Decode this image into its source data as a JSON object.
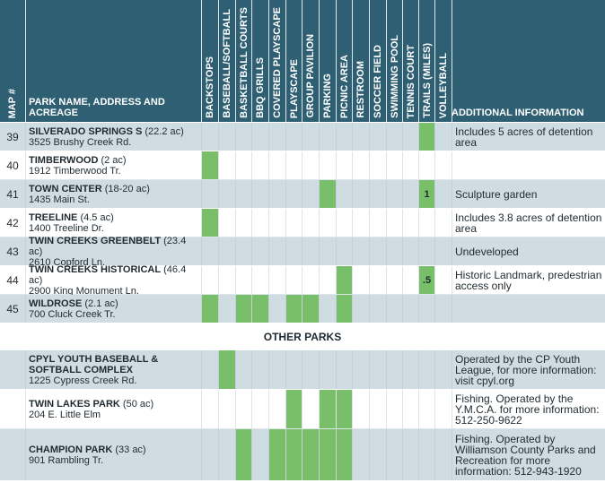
{
  "headers": {
    "map_no": "MAP #",
    "park_name": "PARK NAME, ADDRESS AND\nACREAGE",
    "amenities": [
      "BACKSTOPS",
      "BASEBALL/SOFTBALL",
      "BASKETBALL COURTS",
      "BBQ GRILLS",
      "COVERED PLAYSCAPE",
      "PLAYSCAPE",
      "GROUP PAVILION",
      "PARKING",
      "PICNIC AREA",
      "RESTROOM",
      "SOCCER FIELD",
      "SWIMMING POOL",
      "TENNIS COURT",
      "TRAILS (MILES)",
      "VOLLEYBALL"
    ],
    "additional": "ADDITIONAL INFORMATION"
  },
  "colors": {
    "header": "#2f5f73",
    "shaded_row": "#cfdde2",
    "amenity_fill": "#79bf6a"
  },
  "parks": [
    {
      "num": "39",
      "name": "SILVERADO SPRINGS S",
      "acreage": "(22.2 ac)",
      "address": "3525 Brushy Creek Rd.",
      "amenities": [
        13
      ],
      "amenity_labels": {},
      "info": "Includes 5 acres of detention area"
    },
    {
      "num": "40",
      "name": "TIMBERWOOD",
      "acreage": "(2 ac)",
      "address": "1912 Timberwood Tr.",
      "amenities": [
        0
      ],
      "amenity_labels": {},
      "info": ""
    },
    {
      "num": "41",
      "name": "TOWN CENTER",
      "acreage": "(18-20 ac)",
      "address": "1435 Main St.",
      "amenities": [
        7,
        13
      ],
      "amenity_labels": {
        "13": "1"
      },
      "info": "Sculpture garden"
    },
    {
      "num": "42",
      "name": "TREELINE",
      "acreage": "(4.5 ac)",
      "address": "1400 Treeline Dr.",
      "amenities": [
        0
      ],
      "amenity_labels": {},
      "info": "Includes 3.8 acres of detention area"
    },
    {
      "num": "43",
      "name": "TWIN CREEKS GREENBELT",
      "acreage": "(23.4 ac)",
      "address": "2610 Copford Ln.",
      "amenities": [],
      "amenity_labels": {},
      "info": "Undeveloped"
    },
    {
      "num": "44",
      "name": "TWIN CREEKS HISTORICAL",
      "acreage": "(46.4 ac)",
      "address": "2900 King Monument Ln.",
      "amenities": [
        8,
        13
      ],
      "amenity_labels": {
        "13": ".5"
      },
      "info": "Historic Landmark, predestrian access only"
    },
    {
      "num": "45",
      "name": "WILDROSE",
      "acreage": "(2.1 ac)",
      "address": "700 Cluck Creek Tr.",
      "amenities": [
        0,
        2,
        3,
        5,
        6,
        8
      ],
      "amenity_labels": {},
      "info": ""
    }
  ],
  "section_title": "OTHER PARKS",
  "other_parks": [
    {
      "num": "",
      "name": "CPYL YOUTH BASEBALL & SOFTBALL COMPLEX",
      "acreage": "",
      "address": "1225 Cypress Creek Rd.",
      "amenities": [
        1
      ],
      "amenity_labels": {},
      "info": "Operated by the CP Youth League, for more information: visit cpyl.org"
    },
    {
      "num": "",
      "name": "TWIN LAKES PARK",
      "acreage": "(50 ac)",
      "address": "204 E. Little Elm",
      "amenities": [
        5,
        7,
        8
      ],
      "amenity_labels": {},
      "info": "Fishing. Operated by the Y.M.C.A. for more information: 512-250-9622"
    },
    {
      "num": "",
      "name": "CHAMPION PARK",
      "acreage": "(33 ac)",
      "address": "901 Rambling Tr.",
      "amenities": [
        2,
        4,
        5,
        6,
        7,
        8
      ],
      "amenity_labels": {},
      "info": "Fishing. Operated by Williamson County Parks and Recreation for more information: 512-943-1920"
    }
  ]
}
